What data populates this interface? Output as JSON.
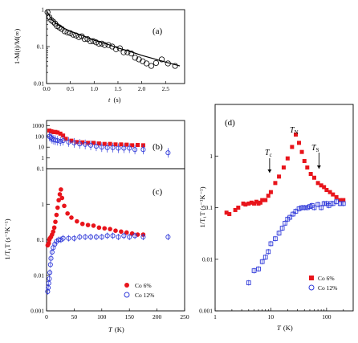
{
  "chart_data": [
    {
      "panel": "(a)",
      "type": "scatter",
      "xlabel": "t (s)",
      "ylabel": "1-M(t)/M(∞)",
      "xlim": [
        0,
        2.9
      ],
      "ylim": [
        0.01,
        1
      ],
      "yscale": "log",
      "xticks": [
        "0.0",
        "0.5",
        "1.0",
        "1.5",
        "2.0",
        "2.5"
      ],
      "yticks": [
        "0.01",
        "0.1",
        "1"
      ],
      "series": [
        {
          "marker": "open-circle",
          "x": [
            0.02,
            0.06,
            0.1,
            0.14,
            0.18,
            0.22,
            0.27,
            0.32,
            0.38,
            0.44,
            0.5,
            0.56,
            0.62,
            0.68,
            0.74,
            0.8,
            0.86,
            0.92,
            0.98,
            1.04,
            1.1,
            1.16,
            1.22,
            1.3,
            1.38,
            1.46,
            1.54,
            1.62,
            1.7,
            1.78,
            1.86,
            1.94,
            2.02,
            2.1,
            2.2,
            2.3,
            2.42,
            2.55,
            2.7
          ],
          "y": [
            0.85,
            0.62,
            0.52,
            0.47,
            0.42,
            0.36,
            0.33,
            0.3,
            0.26,
            0.24,
            0.23,
            0.21,
            0.2,
            0.18,
            0.19,
            0.16,
            0.16,
            0.14,
            0.14,
            0.13,
            0.12,
            0.12,
            0.11,
            0.11,
            0.1,
            0.085,
            0.09,
            0.07,
            0.07,
            0.065,
            0.05,
            0.045,
            0.04,
            0.035,
            0.03,
            0.036,
            0.045,
            0.035,
            0.03
          ]
        },
        {
          "type": "line",
          "x": [
            0.02,
            0.1,
            0.2,
            0.35,
            0.5,
            0.75,
            1.0,
            1.25,
            1.5,
            1.75,
            2.0,
            2.25,
            2.5,
            2.8
          ],
          "y": [
            0.85,
            0.55,
            0.42,
            0.32,
            0.26,
            0.2,
            0.15,
            0.12,
            0.092,
            0.074,
            0.058,
            0.047,
            0.038,
            0.03
          ]
        }
      ]
    },
    {
      "panel": "(b)",
      "type": "scatter",
      "xlim": [
        0,
        250
      ],
      "ylim": [
        0.1,
        3000
      ],
      "yscale": "log",
      "yticks": [
        "0.1",
        "1",
        "10",
        "100",
        "1000"
      ],
      "series": [
        {
          "name": "Co 6%",
          "color": "#e8141b",
          "marker": "filled-square",
          "x": [
            5,
            8,
            10,
            13,
            16,
            20,
            25,
            30,
            35,
            45,
            55,
            65,
            75,
            85,
            95,
            105,
            115,
            125,
            135,
            145,
            155,
            165,
            175
          ],
          "y": [
            350,
            300,
            280,
            250,
            260,
            230,
            180,
            120,
            60,
            40,
            30,
            28,
            25,
            25,
            22,
            20,
            20,
            18,
            18,
            17,
            15,
            16,
            15
          ]
        },
        {
          "name": "Co 12%",
          "color": "#2f39d9",
          "marker": "open-circle-errorbar",
          "x": [
            5,
            8,
            10,
            13,
            16,
            20,
            25,
            30,
            40,
            50,
            60,
            70,
            80,
            90,
            100,
            110,
            120,
            130,
            140,
            150,
            160,
            175,
            220
          ],
          "y": [
            100,
            80,
            60,
            50,
            45,
            40,
            35,
            40,
            30,
            25,
            20,
            18,
            15,
            12,
            10,
            9,
            9,
            8,
            8,
            8,
            6,
            6,
            3
          ]
        }
      ]
    },
    {
      "panel": "(c)",
      "type": "scatter",
      "xlabel": "T (K)",
      "ylabel": "1/T₁T (s⁻¹K⁻¹)",
      "xlim": [
        0,
        250
      ],
      "ylim": [
        0.001,
        10
      ],
      "yscale": "log",
      "xticks": [
        "0",
        "50",
        "100",
        "150",
        "200",
        "250"
      ],
      "yticks": [
        "0.001",
        "0.01",
        "0.1",
        "1"
      ],
      "legend": "bottom-right",
      "series": [
        {
          "name": "Co 6%",
          "color": "#e8141b",
          "marker": "filled-circle",
          "x": [
            2,
            3,
            4,
            5,
            6,
            8,
            10,
            12,
            14,
            16,
            18,
            20,
            22,
            24,
            26,
            28,
            32,
            38,
            45,
            55,
            65,
            75,
            85,
            95,
            105,
            115,
            125,
            135,
            145,
            155,
            165,
            175
          ],
          "y": [
            0.07,
            0.075,
            0.08,
            0.1,
            0.11,
            0.12,
            0.14,
            0.17,
            0.22,
            0.32,
            0.5,
            0.8,
            1.3,
            1.9,
            2.6,
            1.5,
            0.9,
            0.55,
            0.42,
            0.33,
            0.28,
            0.26,
            0.25,
            0.22,
            0.21,
            0.2,
            0.18,
            0.17,
            0.16,
            0.15,
            0.14,
            0.14
          ]
        },
        {
          "name": "Co 12%",
          "color": "#2f39d9",
          "marker": "open-circle-errorbar",
          "x": [
            2,
            3,
            4,
            5,
            6,
            7,
            8,
            10,
            12,
            15,
            18,
            22,
            26,
            30,
            40,
            50,
            60,
            70,
            80,
            90,
            100,
            110,
            120,
            130,
            140,
            150,
            160,
            175,
            220
          ],
          "y": [
            0.0035,
            0.0045,
            0.006,
            0.008,
            0.012,
            0.02,
            0.03,
            0.045,
            0.06,
            0.075,
            0.09,
            0.1,
            0.1,
            0.11,
            0.11,
            0.11,
            0.12,
            0.12,
            0.12,
            0.12,
            0.12,
            0.13,
            0.13,
            0.12,
            0.13,
            0.12,
            0.13,
            0.12,
            0.12
          ]
        }
      ]
    },
    {
      "panel": "(d)",
      "type": "scatter",
      "xlabel": "T (K)",
      "ylabel": "1/T₁T (s⁻¹K⁻¹)",
      "xscale": "log",
      "yscale": "log",
      "xlim": [
        1,
        300
      ],
      "ylim": [
        0.001,
        10
      ],
      "xticks": [
        "1",
        "10",
        "100"
      ],
      "yticks": [
        "0.001",
        "0.01",
        "0.1",
        "1"
      ],
      "legend": "bottom-right",
      "annotations": [
        {
          "text": "T_N",
          "at_T": 30
        },
        {
          "text": "T_c",
          "at_T": 9.5
        },
        {
          "text": "T_S",
          "at_T": 73
        }
      ],
      "series": [
        {
          "name": "Co 6%",
          "color": "#e8141b",
          "marker": "filled-square",
          "x": [
            1.6,
            1.8,
            2.3,
            2.6,
            3.2,
            3.5,
            4,
            4.5,
            5,
            5.5,
            6,
            6.5,
            7,
            8,
            9,
            10,
            12,
            14,
            17,
            20,
            24,
            28,
            32,
            36,
            40,
            45,
            52,
            60,
            70,
            80,
            90,
            100,
            115,
            130,
            150,
            175,
            200
          ],
          "y": [
            0.08,
            0.075,
            0.09,
            0.1,
            0.12,
            0.115,
            0.12,
            0.125,
            0.12,
            0.13,
            0.12,
            0.125,
            0.14,
            0.14,
            0.17,
            0.2,
            0.3,
            0.4,
            0.6,
            0.9,
            1.5,
            2.6,
            1.8,
            1.2,
            0.8,
            0.6,
            0.45,
            0.38,
            0.3,
            0.27,
            0.25,
            0.22,
            0.2,
            0.18,
            0.16,
            0.14,
            0.14
          ]
        },
        {
          "name": "Co 12%",
          "color": "#2f39d9",
          "marker": "open-square-errorbar",
          "x": [
            4,
            5,
            6,
            7,
            8,
            9,
            10,
            12,
            14,
            16,
            18,
            20,
            22,
            25,
            28,
            32,
            36,
            40,
            45,
            50,
            55,
            60,
            70,
            80,
            90,
            100,
            110,
            120,
            130,
            150,
            175,
            200
          ],
          "y": [
            0.0035,
            0.006,
            0.0065,
            0.009,
            0.011,
            0.014,
            0.02,
            0.025,
            0.032,
            0.04,
            0.05,
            0.06,
            0.065,
            0.075,
            0.085,
            0.095,
            0.1,
            0.1,
            0.1,
            0.105,
            0.11,
            0.1,
            0.115,
            0.1,
            0.12,
            0.12,
            0.11,
            0.12,
            0.12,
            0.13,
            0.12,
            0.12
          ]
        }
      ]
    }
  ],
  "text": {
    "panel_a": "(a)",
    "panel_b": "(b)",
    "panel_c": "(c)",
    "panel_d": "(d)",
    "a_xlabel_t": "t",
    "a_xlabel_unit": "(s)",
    "a_ylabel": "1-M(t)/M(∞)",
    "c_xlabel_T": "T",
    "c_xlabel_unit": "(K)",
    "c_ylabel": "1/T₁T (s⁻¹K⁻¹)",
    "d_xlabel_T": "T",
    "d_xlabel_unit": "(K)",
    "d_ylabel": "1/T₁T (s⁻¹K⁻¹)",
    "d_TN_main": "T",
    "d_TN_sub": "N",
    "d_Tc_main": "T",
    "d_Tc_sub": "c",
    "d_TS_main": "T",
    "d_TS_sub": "S",
    "legend_co6": "Co 6%",
    "legend_co12": "Co 12%"
  }
}
